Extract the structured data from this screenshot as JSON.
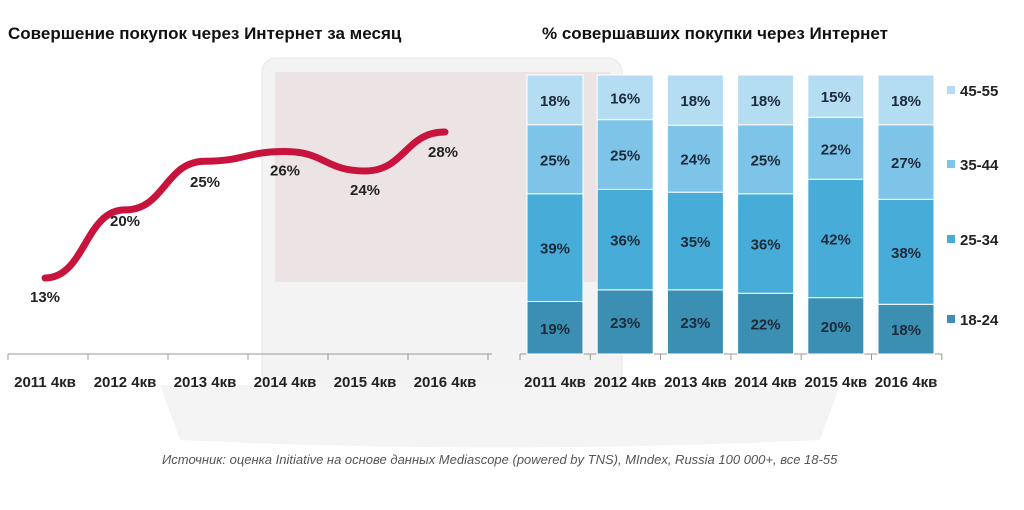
{
  "chart_data": [
    {
      "type": "line",
      "title": "Совершение покупок через Интернет за месяц",
      "categories": [
        "2011 4кв",
        "2012 4кв",
        "2013 4кв",
        "2014 4кв",
        "2015 4кв",
        "2016 4кв"
      ],
      "values": [
        13,
        20,
        25,
        26,
        24,
        28
      ],
      "labels": [
        "13%",
        "20%",
        "25%",
        "26%",
        "24%",
        "28%"
      ],
      "color": "#c8143c"
    },
    {
      "type": "bar",
      "stacked": true,
      "title": "% совершавших покупки через Интернет",
      "categories": [
        "2011 4кв",
        "2012 4кв",
        "2013 4кв",
        "2014 4кв",
        "2015 4кв",
        "2016 4кв"
      ],
      "series": [
        {
          "name": "18-24",
          "values": [
            19,
            23,
            23,
            22,
            20,
            18
          ],
          "color": "#3b8fb3"
        },
        {
          "name": "25-34",
          "values": [
            39,
            36,
            35,
            36,
            42,
            38
          ],
          "color": "#48acd8"
        },
        {
          "name": "35-44",
          "values": [
            25,
            25,
            24,
            25,
            22,
            27
          ],
          "color": "#7ec4e8"
        },
        {
          "name": "45-55",
          "values": [
            18,
            16,
            18,
            18,
            15,
            18
          ],
          "color": "#b5ddf2"
        }
      ],
      "legend": "right"
    }
  ],
  "source": "Источник: оценка Initiative на основе данных Mediascope (powered by TNS), MIndex, Russia 100 000+, все 18-55"
}
